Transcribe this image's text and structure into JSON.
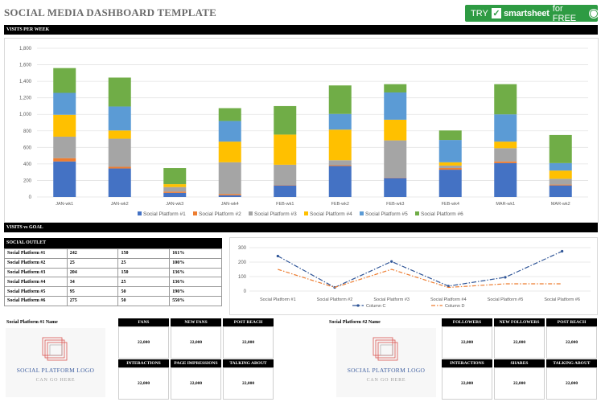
{
  "page": {
    "title": "SOCIAL MEDIA DASHBOARD TEMPLATE",
    "promo": {
      "try": "TRY",
      "check": "✓",
      "brand": "smartsheet",
      "for": "for FREE"
    },
    "visits_header": "VISITS PER WEEK",
    "goal_header": "VISITS vs GOAL",
    "outlet_header": "SOCIAL OUTLET"
  },
  "outlet_table": [
    [
      "Social Platform #1",
      "242",
      "150",
      "161%"
    ],
    [
      "Social Platform #2",
      "25",
      "25",
      "100%"
    ],
    [
      "Social Platform #3",
      "204",
      "150",
      "136%"
    ],
    [
      "Social Platform #4",
      "34",
      "25",
      "136%"
    ],
    [
      "Social Platform #5",
      "95",
      "50",
      "190%"
    ],
    [
      "Social Platform #6",
      "275",
      "50",
      "550%"
    ]
  ],
  "platform1": {
    "name": "Social Platform #1 Name",
    "logo_title": "SOCIAL PLATFORM LOGO",
    "logo_sub": "CAN GO HERE",
    "metrics": [
      {
        "label": "FANS",
        "value": "22,000"
      },
      {
        "label": "NEW FANS",
        "value": "22,000"
      },
      {
        "label": "POST REACH",
        "value": "22,000"
      },
      {
        "label": "INTERACTIONS",
        "value": "22,000"
      },
      {
        "label": "PAGE IMPRESSIONS",
        "value": "22,000"
      },
      {
        "label": "TALKING ABOUT",
        "value": "22,000"
      }
    ]
  },
  "platform2": {
    "name": "Social Platform #2 Name",
    "logo_title": "SOCIAL PLATFORM LOGO",
    "logo_sub": "CAN GO HERE",
    "metrics": [
      {
        "label": "FOLLOWERS",
        "value": "22,000"
      },
      {
        "label": "NEW FOLLOWERS",
        "value": "22,000"
      },
      {
        "label": "POST REACH",
        "value": "22,000"
      },
      {
        "label": "INTERACTIONS",
        "value": "22,000"
      },
      {
        "label": "SHARES",
        "value": "22,000"
      },
      {
        "label": "TALKING ABOUT",
        "value": "22,000"
      }
    ]
  },
  "chart_data": [
    {
      "type": "bar",
      "stacked": true,
      "title": "",
      "categories": [
        "JAN-wk1",
        "JAN-wk2",
        "JAN-wk3",
        "JAN-wk4",
        "FEB-wk1",
        "FEB-wk2",
        "FEB-wk3",
        "FEB-wk4",
        "MAR-wk1",
        "MAR-wk2"
      ],
      "ylim": [
        0,
        1800
      ],
      "yticks": [
        0,
        200,
        400,
        600,
        800,
        1000,
        1200,
        1400,
        1600,
        1800
      ],
      "ytick_labels": [
        "0",
        "200",
        "400",
        "600",
        "800",
        "1,000",
        "1,200",
        "1,400",
        "1,600",
        "1,800"
      ],
      "grid": true,
      "legend": "bottom",
      "colors": [
        "#4472c4",
        "#ed7d31",
        "#a5a5a5",
        "#ffc000",
        "#5b9bd5",
        "#70ad47"
      ],
      "series": [
        {
          "name": "Social Platform #1",
          "values": [
            430,
            345,
            50,
            20,
            140,
            375,
            230,
            330,
            410,
            140
          ]
        },
        {
          "name": "Social Platform #2",
          "values": [
            40,
            20,
            15,
            15,
            5,
            10,
            5,
            20,
            20,
            10
          ]
        },
        {
          "name": "Social Platform #3",
          "values": [
            260,
            340,
            55,
            385,
            245,
            60,
            450,
            30,
            160,
            70
          ]
        },
        {
          "name": "Social Platform #4",
          "values": [
            265,
            100,
            35,
            250,
            365,
            370,
            250,
            40,
            80,
            100
          ]
        },
        {
          "name": "Social Platform #5",
          "values": [
            265,
            290,
            0,
            250,
            0,
            190,
            330,
            270,
            330,
            90
          ]
        },
        {
          "name": "Social Platform #6",
          "values": [
            300,
            350,
            195,
            155,
            345,
            345,
            100,
            115,
            365,
            340
          ]
        }
      ]
    },
    {
      "type": "line",
      "title": "",
      "categories": [
        "Social Platform #1",
        "Social Platform #2",
        "Social Platform #3",
        "Social Platform #4",
        "Social Platform #5",
        "Social Platform #6"
      ],
      "ylim": [
        0,
        300
      ],
      "yticks": [
        0,
        100,
        200,
        300
      ],
      "grid": true,
      "legend": "bottom",
      "series": [
        {
          "name": "Column C",
          "color": "#2f5597",
          "values": [
            242,
            25,
            204,
            34,
            95,
            275
          ]
        },
        {
          "name": "Column D",
          "color": "#ed7d31",
          "values": [
            150,
            25,
            150,
            25,
            50,
            50
          ]
        }
      ]
    }
  ]
}
